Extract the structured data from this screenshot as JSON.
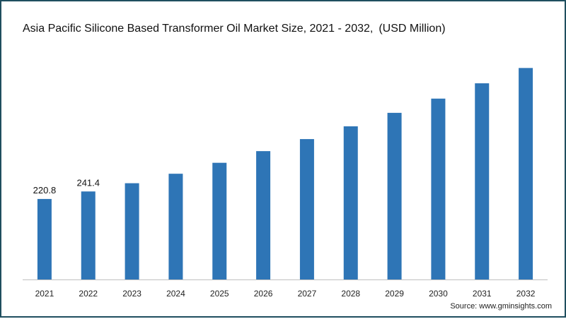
{
  "title": "Asia Pacific Silicone Based Transformer Oil Market Size, 2021 - 2032,",
  "unit_label": "(USD Million)",
  "source": "Source: www.gminsights.com",
  "colors": {
    "bar": "#2e75b6",
    "border": "#1f4e5f",
    "axis": "#bfbfbf"
  },
  "chart_data": {
    "type": "bar",
    "title": "Asia Pacific Silicone Based Transformer Oil Market Size, 2021 - 2032,",
    "xlabel": "",
    "ylabel": "",
    "categories": [
      "2021",
      "2022",
      "2023",
      "2024",
      "2025",
      "2026",
      "2027",
      "2028",
      "2029",
      "2030",
      "2031",
      "2032"
    ],
    "values": [
      220.8,
      241.4,
      264,
      290,
      320,
      352,
      385,
      420,
      457,
      496,
      538,
      580
    ],
    "data_labels": [
      "220.8",
      "241.4",
      "",
      "",
      "",
      "",
      "",
      "",
      "",
      "",
      "",
      ""
    ],
    "ylim": [
      0,
      600
    ],
    "grid": false,
    "legend": "none"
  }
}
